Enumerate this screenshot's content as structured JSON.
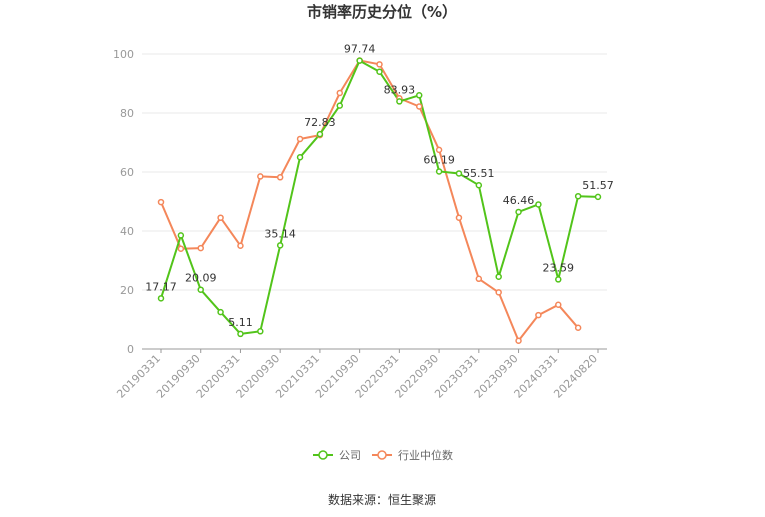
{
  "chart_data": {
    "type": "line",
    "title": "市销率历史分位（%）",
    "ylim": [
      0,
      100
    ],
    "yticks": [
      "0",
      "20",
      "40",
      "60",
      "80",
      "100"
    ],
    "x_tick_labels": [
      "20190331",
      "20190930",
      "20200331",
      "20200930",
      "20210331",
      "20210930",
      "20220331",
      "20220930",
      "20230331",
      "20230930",
      "20240331",
      "20240820"
    ],
    "x": [
      "20190331",
      "20190630",
      "20190930",
      "20191231",
      "20200331",
      "20200630",
      "20200930",
      "20201231",
      "20210331",
      "20210630",
      "20210930",
      "20211231",
      "20220331",
      "20220630",
      "20220930",
      "20221231",
      "20230331",
      "20230630",
      "20230930",
      "20231231",
      "20240331",
      "20240630",
      "20240820"
    ],
    "series": [
      {
        "name": "公司",
        "color": "#52c41a",
        "values": [
          17.17,
          38.5,
          20.09,
          12.5,
          5.11,
          6.0,
          35.14,
          65.0,
          72.83,
          82.5,
          97.74,
          94.0,
          83.93,
          86.0,
          60.19,
          59.5,
          55.51,
          24.5,
          46.46,
          49.0,
          23.59,
          51.8,
          51.57
        ]
      },
      {
        "name": "行业中位数",
        "color": "#f4875a",
        "values": [
          49.8,
          34.0,
          34.2,
          44.5,
          35.0,
          58.5,
          58.2,
          71.2,
          72.5,
          86.8,
          97.8,
          96.5,
          85.0,
          82.2,
          67.5,
          44.5,
          23.8,
          19.2,
          2.8,
          11.5,
          15.0,
          7.2,
          null
        ]
      }
    ],
    "data_labels": [
      {
        "index": 0,
        "text": "17.17"
      },
      {
        "index": 2,
        "text": "20.09"
      },
      {
        "index": 4,
        "text": "5.11"
      },
      {
        "index": 6,
        "text": "35.14"
      },
      {
        "index": 8,
        "text": "72.83"
      },
      {
        "index": 10,
        "text": "97.74"
      },
      {
        "index": 12,
        "text": "83.93"
      },
      {
        "index": 14,
        "text": "60.19"
      },
      {
        "index": 16,
        "text": "55.51"
      },
      {
        "index": 18,
        "text": "46.46"
      },
      {
        "index": 20,
        "text": "23.59"
      },
      {
        "index": 22,
        "text": "51.57"
      }
    ],
    "grid": true,
    "legend": "bottom-center"
  },
  "source_text": "数据来源：恒生聚源"
}
